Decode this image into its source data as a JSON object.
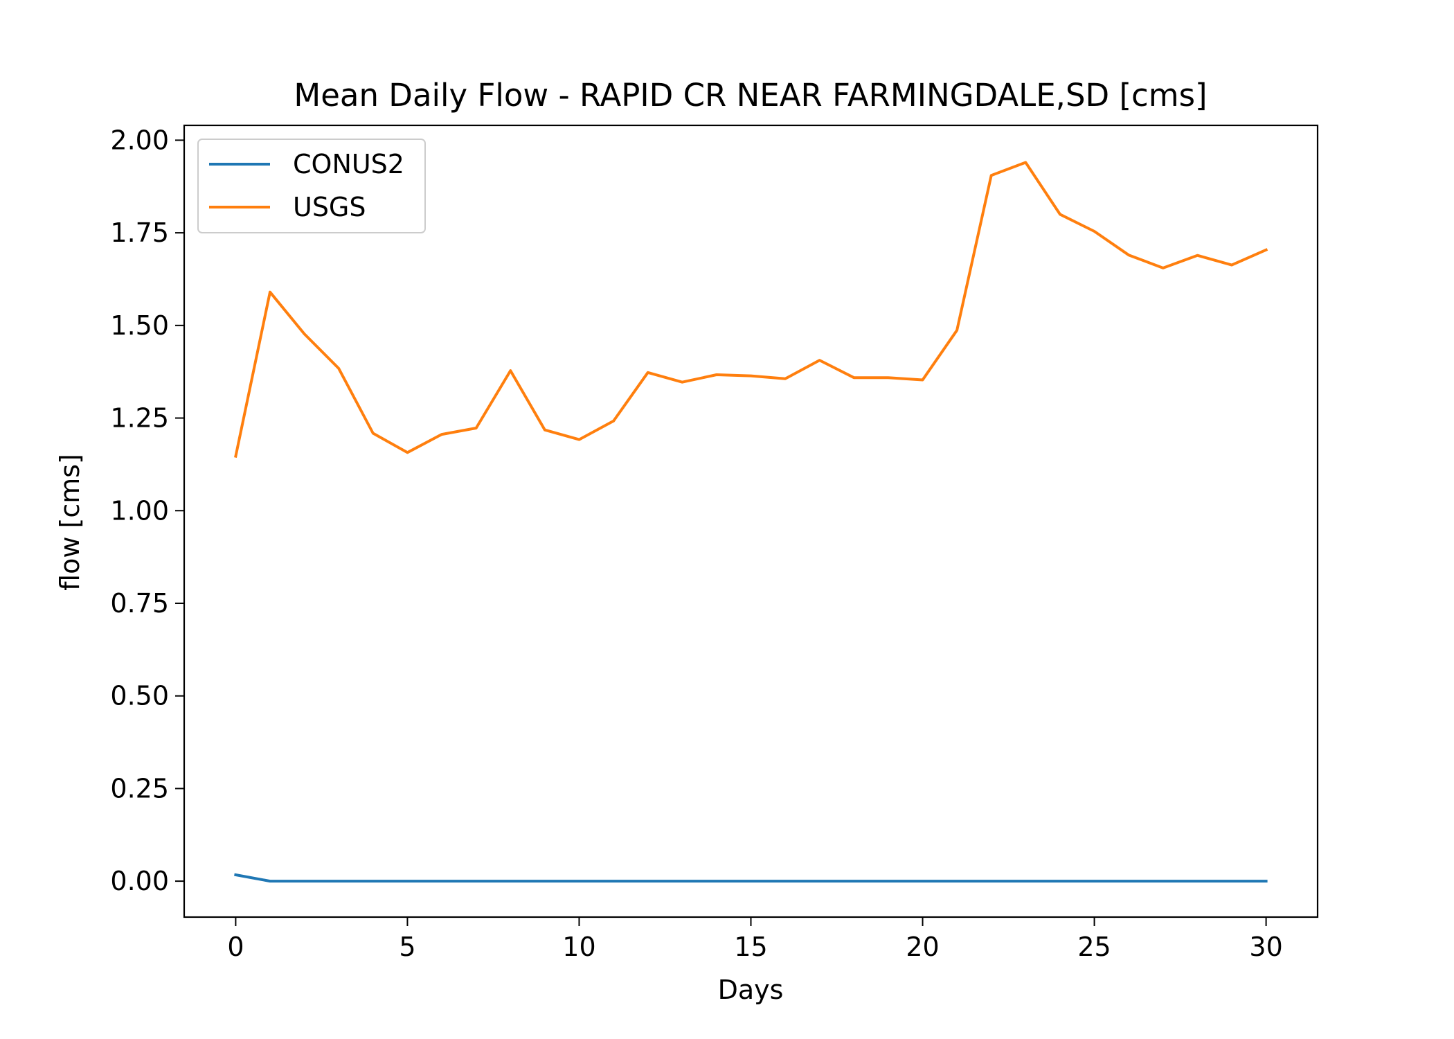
{
  "chart_data": {
    "type": "line",
    "title": "Mean Daily Flow - RAPID CR NEAR FARMINGDALE,SD [cms]",
    "xlabel": "Days",
    "ylabel": "flow [cms]",
    "xlim": [
      -1.5,
      31.5
    ],
    "ylim": [
      -0.097,
      2.04
    ],
    "xticks": [
      0,
      5,
      10,
      15,
      20,
      25,
      30
    ],
    "xtick_labels": [
      "0",
      "5",
      "10",
      "15",
      "20",
      "25",
      "30"
    ],
    "yticks": [
      0,
      0.25,
      0.5,
      0.75,
      1.0,
      1.25,
      1.5,
      1.75,
      2.0
    ],
    "ytick_labels": [
      "0.00",
      "0.25",
      "0.50",
      "0.75",
      "1.00",
      "1.25",
      "1.50",
      "1.75",
      "2.00"
    ],
    "grid": false,
    "legend_position": "upper-left",
    "x": [
      0,
      1,
      2,
      3,
      4,
      5,
      6,
      7,
      8,
      9,
      10,
      11,
      12,
      13,
      14,
      15,
      16,
      17,
      18,
      19,
      20,
      21,
      22,
      23,
      24,
      25,
      26,
      27,
      28,
      29,
      30
    ],
    "series": [
      {
        "name": "CONUS2",
        "color": "#1f77b4",
        "values": [
          0.017,
          0.0,
          0.0,
          0.0,
          0.0,
          0.0,
          0.0,
          0.0,
          0.0,
          0.0,
          0.0,
          0.0,
          0.0,
          0.0,
          0.0,
          0.0,
          0.0,
          0.0,
          0.0,
          0.0,
          0.0,
          0.0,
          0.0,
          0.0,
          0.0,
          0.0,
          0.0,
          0.0,
          0.0,
          0.0,
          0.0
        ]
      },
      {
        "name": "USGS",
        "color": "#ff7f0e",
        "values": [
          1.147,
          1.59,
          1.477,
          1.384,
          1.209,
          1.157,
          1.206,
          1.223,
          1.378,
          1.218,
          1.192,
          1.242,
          1.373,
          1.347,
          1.367,
          1.364,
          1.356,
          1.406,
          1.359,
          1.359,
          1.353,
          1.487,
          1.905,
          1.94,
          1.8,
          1.754,
          1.69,
          1.655,
          1.689,
          1.663,
          1.704
        ]
      }
    ]
  }
}
